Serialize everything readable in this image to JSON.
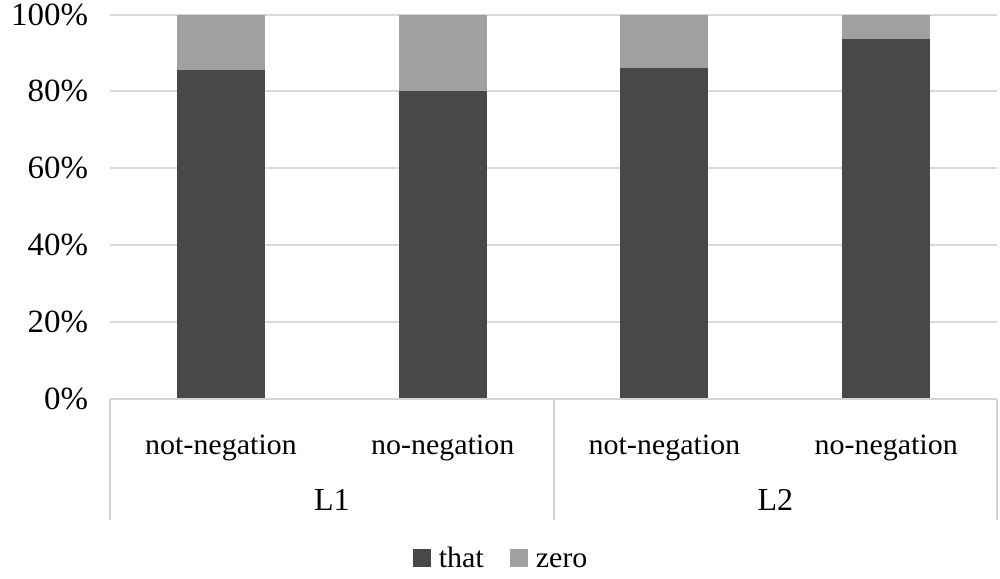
{
  "chart_data": {
    "type": "bar",
    "subtype": "stacked-100-percent",
    "title": "",
    "xlabel": "",
    "ylabel": "",
    "categories": [
      "not-negation",
      "no-negation",
      "not-negation",
      "no-negation"
    ],
    "groups": [
      {
        "label": "L1",
        "category_indices": [
          0,
          1
        ]
      },
      {
        "label": "L2",
        "category_indices": [
          2,
          3
        ]
      }
    ],
    "series": [
      {
        "name": "that",
        "color": "#484848",
        "values": [
          85.5,
          80,
          86,
          93.5
        ]
      },
      {
        "name": "zero",
        "color": "#a0a0a0",
        "values": [
          14.5,
          20,
          14,
          6.5
        ]
      }
    ],
    "ylim": [
      0,
      100
    ],
    "yticks": [
      {
        "value": 100,
        "label": "100%"
      },
      {
        "value": 80,
        "label": "80%"
      },
      {
        "value": 60,
        "label": "60%"
      },
      {
        "value": 40,
        "label": "40%"
      },
      {
        "value": 20,
        "label": "20%"
      },
      {
        "value": 0,
        "label": "0%"
      }
    ],
    "grid": true,
    "legend_position": "bottom",
    "colors": {
      "gridline": "#d9d9d9",
      "axis_line": "#d4d4d4",
      "text": "#000000",
      "background": "#ffffff"
    }
  }
}
